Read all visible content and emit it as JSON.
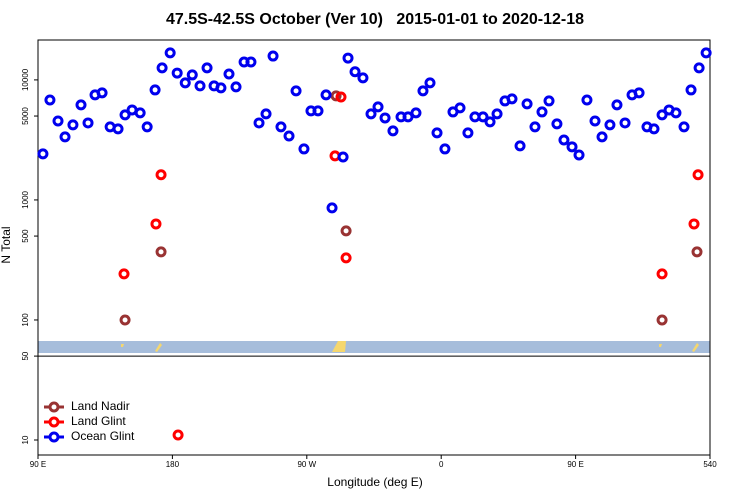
{
  "chart_data": {
    "type": "scatter",
    "title": "47.5S-42.5S October (Ver 10)   2015-01-01 to 2020-12-18",
    "x_label": "Longitude (deg E)",
    "y_label": "N Total",
    "xlim": [
      90,
      540
    ],
    "xticks": [
      {
        "value": 90,
        "label": "90 E"
      },
      180,
      {
        "value": 270,
        "label": "90 W"
      },
      {
        "value": 360,
        "label": "0"
      },
      {
        "value": 450,
        "label": "90 E"
      },
      540
    ],
    "ylim": [
      7.5,
      21500
    ],
    "yticks": [
      10,
      50,
      100,
      500,
      1000,
      5000,
      10000
    ],
    "log_y": true,
    "legend": "bottom-left",
    "series": [
      {
        "name": "Land Nadir",
        "color": "#993333",
        "x": [
          148.3,
          172.4,
          289.6,
          296.3,
          507.9,
          531.3
        ],
        "values": [
          100,
          369,
          7360,
          552,
          100,
          369
        ]
      },
      {
        "name": "Land Glint",
        "color": "#ff0000",
        "x": [
          147.6,
          169.0,
          172.4,
          183.8,
          288.9,
          292.9,
          296.3,
          507.9,
          529.3,
          532.0
        ],
        "values": [
          242,
          631,
          1620,
          11,
          2330,
          7210,
          329,
          242,
          631,
          1620
        ]
      },
      {
        "name": "Ocean Glint",
        "color": "#0000ee",
        "x": [
          93.3,
          98.0,
          103.4,
          108.1,
          113.4,
          118.8,
          123.5,
          128.2,
          132.9,
          138.3,
          143.6,
          148.3,
          153.0,
          158.4,
          163.1,
          168.4,
          173.1,
          178.5,
          183.2,
          188.6,
          193.3,
          198.5,
          203.2,
          207.9,
          212.5,
          217.9,
          222.6,
          228.0,
          232.6,
          238.0,
          242.7,
          247.4,
          252.7,
          258.1,
          262.8,
          268.1,
          272.8,
          277.5,
          282.9,
          286.9,
          294.3,
          297.6,
          302.3,
          307.6,
          313.0,
          317.7,
          322.4,
          327.7,
          333.1,
          337.8,
          343.1,
          347.8,
          352.5,
          357.2,
          362.5,
          367.9,
          372.6,
          377.9,
          382.6,
          388.0,
          392.7,
          397.4,
          402.7,
          407.4,
          412.8,
          417.5,
          422.8,
          427.5,
          432.2,
          437.5,
          442.2,
          447.6,
          452.3,
          457.6,
          463.0,
          467.7,
          473.0,
          477.7,
          483.1,
          487.8,
          492.5,
          497.8,
          502.5,
          507.9,
          512.6,
          517.2,
          522.6,
          527.3,
          532.7,
          537.4
        ],
        "values": [
          2420,
          6800,
          4550,
          3350,
          4220,
          6190,
          4380,
          7500,
          7800,
          4060,
          3910,
          5110,
          5620,
          5310,
          4060,
          8250,
          12600,
          16800,
          11400,
          9440,
          11000,
          8910,
          12600,
          8910,
          8580,
          11200,
          8750,
          14100,
          14100,
          4380,
          5210,
          15800,
          4060,
          3410,
          8100,
          2660,
          5520,
          5520,
          7500,
          858,
          2280,
          15200,
          11700,
          10400,
          5210,
          5960,
          4820,
          3760,
          4920,
          4920,
          5310,
          8100,
          9440,
          3620,
          2660,
          5410,
          5850,
          3620,
          4920,
          4920,
          4470,
          5210,
          6680,
          6950,
          2820,
          6310,
          4060,
          5410,
          6680,
          4300,
          3160,
          2770,
          2370,
          6800,
          4550,
          3350,
          4220,
          6190,
          4380,
          7500,
          7800,
          4060,
          3910,
          5110,
          5620,
          5310,
          4060,
          8250,
          12600,
          16800
        ]
      }
    ]
  }
}
